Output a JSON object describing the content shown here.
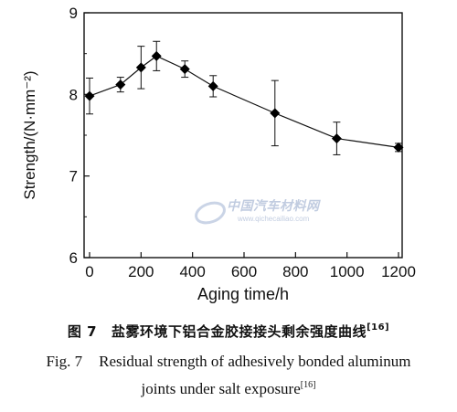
{
  "chart_data": {
    "type": "line",
    "xlabel": "Aging time/h",
    "ylabel": "Strength/(N·mm⁻²)",
    "xlim": [
      0,
      1200
    ],
    "ylim": [
      6,
      9
    ],
    "xticks": [
      0,
      200,
      400,
      600,
      800,
      1000,
      1200
    ],
    "yticks": [
      6,
      7,
      8,
      9
    ],
    "grid": false,
    "marker": "diamond",
    "series": [
      {
        "x": [
          0,
          120,
          200,
          260,
          370,
          480,
          720,
          960,
          1200
        ],
        "y": [
          7.98,
          8.12,
          8.33,
          8.47,
          8.31,
          8.1,
          7.77,
          7.46,
          7.35
        ],
        "err": [
          0.22,
          0.09,
          0.26,
          0.18,
          0.1,
          0.13,
          0.4,
          0.2,
          0.05
        ]
      }
    ]
  },
  "watermark": {
    "main": "中国汽车材料网",
    "sub": "www.qichecailiao.com"
  },
  "caption": {
    "cn_number": "图 7",
    "cn_text": "盐雾环境下铝合金胶接接头剩余强度曲线",
    "cn_ref": "[16]",
    "en_number": "Fig. 7",
    "en_text_line1": "Residual strength of adhesively bonded aluminum",
    "en_text_line2": "joints under salt exposure",
    "en_ref": "[16]"
  }
}
